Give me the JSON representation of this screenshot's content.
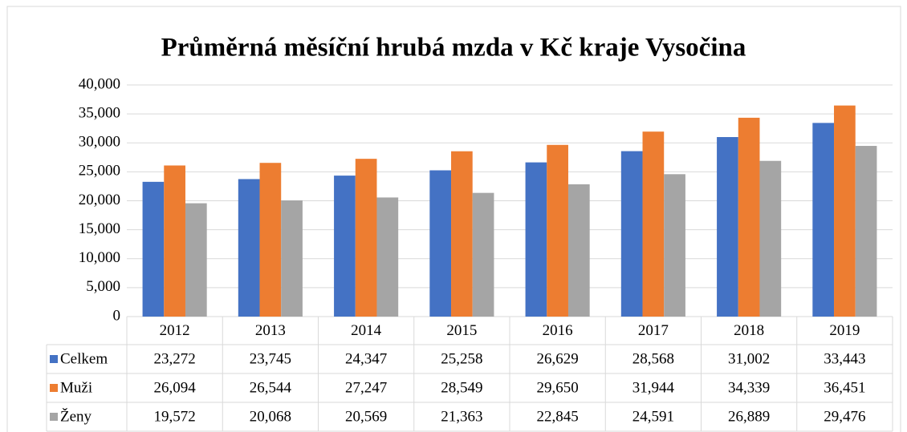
{
  "chart_data": {
    "type": "bar",
    "title": "Průměrná měsíční hrubá mzda v Kč kraje Vysočina",
    "categories": [
      "2012",
      "2013",
      "2014",
      "2015",
      "2016",
      "2017",
      "2018",
      "2019"
    ],
    "series": [
      {
        "name": "Celkem",
        "color": "#4472c4",
        "values": [
          23272,
          23745,
          24347,
          25258,
          26629,
          28568,
          31002,
          33443
        ],
        "value_labels": [
          "23,272",
          "23,745",
          "24,347",
          "25,258",
          "26,629",
          "28,568",
          "31,002",
          "33,443"
        ]
      },
      {
        "name": "Muži",
        "color": "#ed7d31",
        "values": [
          26094,
          26544,
          27247,
          28549,
          29650,
          31944,
          34339,
          36451
        ],
        "value_labels": [
          "26,094",
          "26,544",
          "27,247",
          "28,549",
          "29,650",
          "31,944",
          "34,339",
          "36,451"
        ]
      },
      {
        "name": "Ženy",
        "color": "#a5a5a5",
        "values": [
          19572,
          20068,
          20569,
          21363,
          22845,
          24591,
          26889,
          29476
        ],
        "value_labels": [
          "19,572",
          "20,068",
          "20,569",
          "21,363",
          "22,845",
          "24,591",
          "26,889",
          "29,476"
        ]
      }
    ],
    "ylim": [
      0,
      40000
    ],
    "yticks": [
      0,
      {
        "value": 5000,
        "label": "5,000"
      },
      {
        "value": 10000,
        "label": "10,000"
      },
      {
        "value": 15000,
        "label": "15,000"
      },
      {
        "value": 20000,
        "label": "20,000"
      },
      {
        "value": 25000,
        "label": "25,000"
      },
      {
        "value": 30000,
        "label": "30,000"
      },
      {
        "value": 35000,
        "label": "35,000"
      },
      {
        "value": 40000,
        "label": "40,000"
      }
    ],
    "grid": true
  }
}
